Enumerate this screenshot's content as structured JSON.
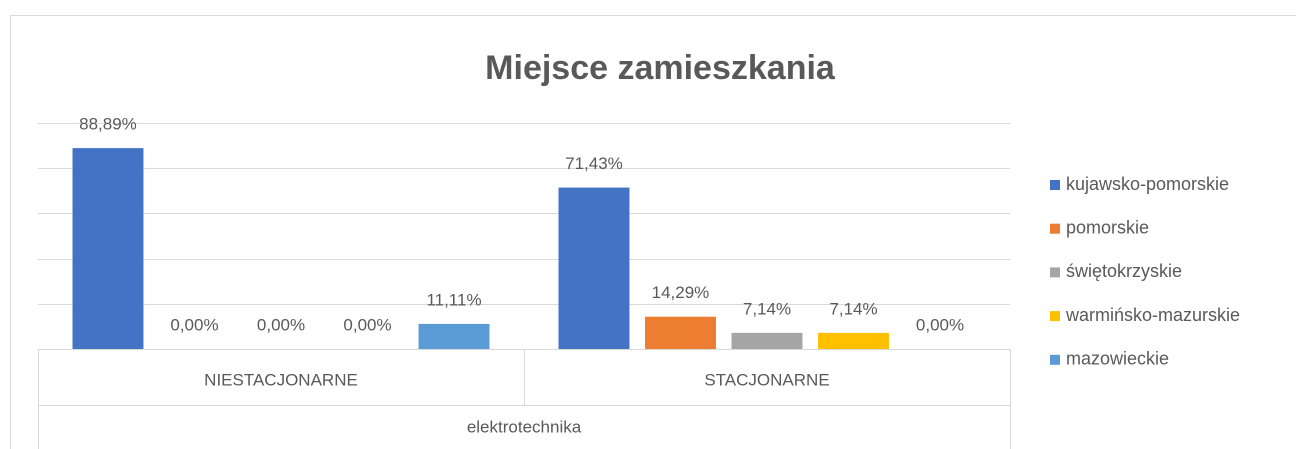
{
  "chart_data": {
    "type": "bar",
    "title": "Miejsce zamieszkania",
    "categories": [
      "NIESTACJONARNE",
      "STACJONARNE"
    ],
    "category_group": "elektrotechnika",
    "series": [
      {
        "name": "kujawsko-pomorskie",
        "color": "#4472c4",
        "values": [
          88.89,
          71.43
        ],
        "value_labels": [
          "88,89%",
          "71,43%"
        ]
      },
      {
        "name": "pomorskie",
        "color": "#ed7d31",
        "values": [
          0,
          14.29
        ],
        "value_labels": [
          "0,00%",
          "14,29%"
        ]
      },
      {
        "name": "świętokrzyskie",
        "color": "#a5a5a5",
        "values": [
          0,
          7.14
        ],
        "value_labels": [
          "0,00%",
          "7,14%"
        ]
      },
      {
        "name": "warmińsko-mazurskie",
        "color": "#ffc000",
        "values": [
          0,
          7.14
        ],
        "value_labels": [
          "0,00%",
          "7,14%"
        ]
      },
      {
        "name": "mazowieckie",
        "color": "#5b9bd5",
        "values": [
          11.11,
          0
        ],
        "value_labels": [
          "11,11%",
          "0,00%"
        ]
      }
    ],
    "ylim": [
      0,
      100
    ],
    "yticks": [
      0,
      20,
      40,
      60,
      80,
      100
    ],
    "grid": true,
    "legend": "right"
  }
}
